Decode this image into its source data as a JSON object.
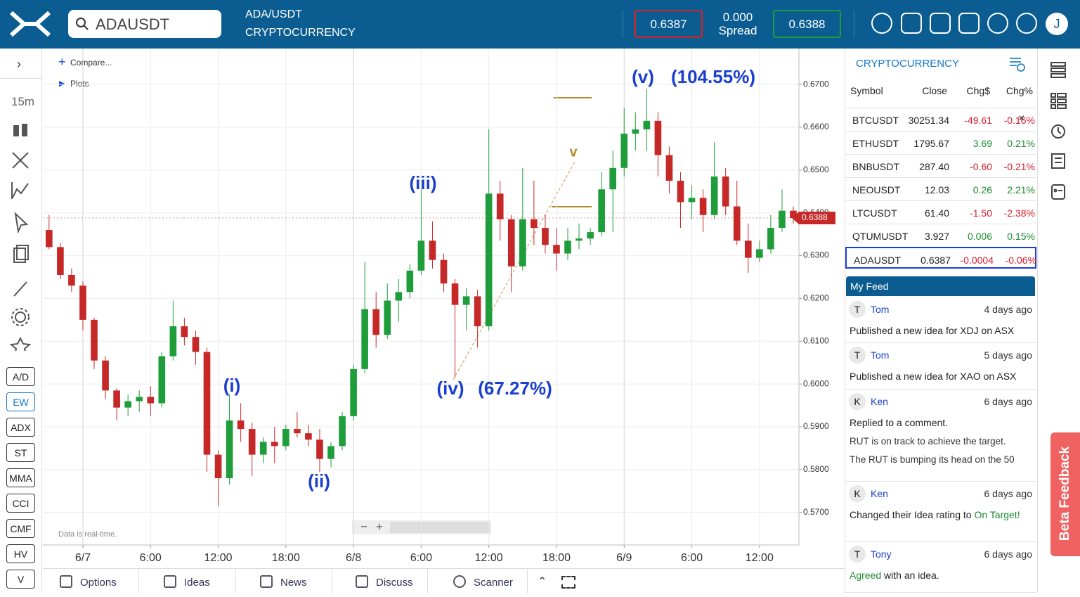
{
  "header": {
    "search": "ADAUSDT",
    "pair": "ADA/USDT",
    "market": "CRYPTOCURRENCY",
    "bid": "0.6387",
    "spread_value": "0.000",
    "spread_label": "Spread",
    "ask": "0.6388",
    "user_initial": "J"
  },
  "toolbar": {
    "interval": "15m",
    "compare": "Compare...",
    "plots": "Plots",
    "indicators": [
      "A/D",
      "EW",
      "ADX",
      "ST",
      "MMA",
      "CCI",
      "CMF",
      "HV",
      "V"
    ],
    "realtime_note": "Data is real-time."
  },
  "chart_data": {
    "type": "candlestick",
    "x": [
      -3,
      -2,
      -1,
      0,
      1,
      2,
      3,
      4,
      5,
      6,
      7,
      8,
      9,
      10,
      11,
      12,
      13,
      14,
      15,
      16,
      17,
      18,
      19,
      20,
      21,
      22,
      23,
      24,
      25,
      26,
      27,
      28,
      29,
      30,
      31,
      32,
      33,
      34,
      35,
      36,
      37,
      38,
      39,
      40,
      41,
      42,
      43,
      44,
      45,
      46,
      47,
      48,
      49,
      50,
      51,
      52,
      53,
      54,
      55,
      56,
      57,
      58,
      59,
      60,
      61,
      62,
      63
    ],
    "open": [
      0.636,
      0.632,
      0.6255,
      0.623,
      0.615,
      0.6055,
      0.5985,
      0.5945,
      0.596,
      0.597,
      0.5955,
      0.6065,
      0.6135,
      0.611,
      0.6075,
      0.5835,
      0.578,
      0.5915,
      0.5895,
      0.5835,
      0.5865,
      0.5855,
      0.5895,
      0.5885,
      0.587,
      0.5825,
      0.5855,
      0.5925,
      0.6035,
      0.6175,
      0.6115,
      0.6195,
      0.6215,
      0.6265,
      0.6335,
      0.629,
      0.6235,
      0.6185,
      0.6205,
      0.6135,
      0.6445,
      0.6385,
      0.6275,
      0.6385,
      0.6365,
      0.6325,
      0.6305,
      0.6335,
      0.634,
      0.6355,
      0.6455,
      0.6505,
      0.6585,
      0.6595,
      0.6615,
      0.6535,
      0.6475,
      0.6425,
      0.6435,
      0.6395,
      0.6485,
      0.6415,
      0.6335,
      0.6295,
      0.6315,
      0.6365,
      0.6405
    ],
    "high": [
      0.6395,
      0.633,
      0.627,
      0.624,
      0.6155,
      0.6065,
      0.599,
      0.5975,
      0.5985,
      0.5995,
      0.6075,
      0.6195,
      0.6155,
      0.6125,
      0.6085,
      0.5845,
      0.5975,
      0.5955,
      0.591,
      0.5875,
      0.59,
      0.5905,
      0.5935,
      0.5905,
      0.5895,
      0.5865,
      0.5935,
      0.6045,
      0.6285,
      0.6215,
      0.6235,
      0.6245,
      0.628,
      0.6455,
      0.638,
      0.6305,
      0.6245,
      0.6225,
      0.622,
      0.6595,
      0.6475,
      0.6395,
      0.6505,
      0.6475,
      0.6395,
      0.6365,
      0.6365,
      0.6375,
      0.6365,
      0.6495,
      0.6545,
      0.6645,
      0.6635,
      0.669,
      0.6635,
      0.6555,
      0.6495,
      0.6465,
      0.6455,
      0.6565,
      0.6505,
      0.6475,
      0.6375,
      0.6335,
      0.6395,
      0.6455,
      0.6415
    ],
    "low": [
      0.6315,
      0.6245,
      0.6215,
      0.6125,
      0.6035,
      0.5965,
      0.5915,
      0.5925,
      0.5935,
      0.5925,
      0.5945,
      0.6055,
      0.609,
      0.6045,
      0.5795,
      0.5715,
      0.5765,
      0.5865,
      0.5785,
      0.5815,
      0.5815,
      0.5845,
      0.5875,
      0.5855,
      0.5795,
      0.5805,
      0.5845,
      0.5915,
      0.6025,
      0.6085,
      0.6105,
      0.6145,
      0.62,
      0.6255,
      0.627,
      0.6215,
      0.6015,
      0.6125,
      0.6085,
      0.6125,
      0.6335,
      0.6215,
      0.6265,
      0.6325,
      0.6305,
      0.6265,
      0.629,
      0.6315,
      0.6325,
      0.6345,
      0.6355,
      0.6485,
      0.6545,
      0.6545,
      0.6485,
      0.6445,
      0.6365,
      0.6385,
      0.6355,
      0.6385,
      0.6395,
      0.6325,
      0.626,
      0.6285,
      0.6305,
      0.6355,
      0.6375
    ],
    "close": [
      0.632,
      0.6255,
      0.623,
      0.615,
      0.6055,
      0.5985,
      0.5945,
      0.596,
      0.597,
      0.5955,
      0.6065,
      0.6135,
      0.611,
      0.6075,
      0.5835,
      0.578,
      0.5915,
      0.5895,
      0.5835,
      0.5865,
      0.5855,
      0.5895,
      0.5885,
      0.587,
      0.5825,
      0.5855,
      0.5925,
      0.6035,
      0.6175,
      0.6115,
      0.6195,
      0.6215,
      0.6265,
      0.6335,
      0.629,
      0.6235,
      0.6185,
      0.6205,
      0.6135,
      0.6445,
      0.6385,
      0.6275,
      0.6385,
      0.6365,
      0.6325,
      0.6305,
      0.6335,
      0.634,
      0.6355,
      0.6455,
      0.6505,
      0.6585,
      0.6595,
      0.6615,
      0.6535,
      0.6475,
      0.6425,
      0.6435,
      0.6395,
      0.6485,
      0.6415,
      0.6335,
      0.6295,
      0.6315,
      0.6365,
      0.6405,
      0.6388
    ],
    "up_color": "#1f9d3a",
    "down_color": "#c62828",
    "xlim": [
      -3.55,
      63.5
    ],
    "xticks": [
      {
        "value": 0,
        "label": "6/7"
      },
      {
        "value": 6,
        "label": "6:00"
      },
      {
        "value": 12,
        "label": "12:00"
      },
      {
        "value": 18,
        "label": "18:00"
      },
      {
        "value": 24,
        "label": "6/8"
      },
      {
        "value": 30,
        "label": "6:00"
      },
      {
        "value": 36,
        "label": "12:00"
      },
      {
        "value": 42,
        "label": "18:00"
      },
      {
        "value": 48,
        "label": "6/9"
      },
      {
        "value": 54,
        "label": "6:00"
      },
      {
        "value": 60,
        "label": "12:00"
      }
    ],
    "ylim": [
      0.5624,
      0.6784
    ],
    "yticks": [
      {
        "value": 0.57,
        "label": "0.5700"
      },
      {
        "value": 0.58,
        "label": "0.5800"
      },
      {
        "value": 0.59,
        "label": "0.5900"
      },
      {
        "value": 0.6,
        "label": "0.6000"
      },
      {
        "value": 0.61,
        "label": "0.6100"
      },
      {
        "value": 0.62,
        "label": "0.6200"
      },
      {
        "value": 0.63,
        "label": "0.6300"
      },
      {
        "value": 0.64,
        "label": "0.6400"
      },
      {
        "value": 0.65,
        "label": "0.6500"
      },
      {
        "value": 0.66,
        "label": "0.6600"
      },
      {
        "value": 0.67,
        "label": "0.6700"
      }
    ],
    "last_price": 0.6388,
    "grid": true,
    "annotations": [
      "(i)",
      "(ii)",
      "(iii)",
      "(iv)",
      "(67.27%)",
      "(v)",
      "(104.55%)",
      "v"
    ]
  },
  "watchlist": {
    "title": "CRYPTOCURRENCY",
    "columns": [
      "Symbol",
      "Close",
      "Chg$",
      "Chg%"
    ],
    "rows": [
      [
        "BTCUSDT",
        "30251.34",
        "-49.61",
        "-0.16%"
      ],
      [
        "ETHUSDT",
        "1795.67",
        "3.69",
        "0.21%"
      ],
      [
        "BNBUSDT",
        "287.40",
        "-0.60",
        "-0.21%"
      ],
      [
        "NEOUSDT",
        "12.03",
        "0.26",
        "2.21%"
      ],
      [
        "LTCUSDT",
        "61.40",
        "-1.50",
        "-2.38%"
      ],
      [
        "QTUMUSDT",
        "3.927",
        "0.006",
        "0.15%"
      ],
      [
        "ADAUSDT",
        "0.6387",
        "-0.0004",
        "-0.06%"
      ]
    ]
  },
  "feed": {
    "title": "My Feed",
    "items": [
      {
        "initial": "T",
        "user": "Tom",
        "time": "4 days ago",
        "text": [
          "Published a new idea for XDJ on ASX"
        ]
      },
      {
        "initial": "T",
        "user": "Tom",
        "time": "5 days ago",
        "text": [
          "Published a new idea for XAO on ASX"
        ]
      },
      {
        "initial": "K",
        "user": "Ken",
        "time": "6 days ago",
        "text": [
          "Replied to a comment."
        ],
        "body": [
          "RUT is on track to achieve the target.",
          "The RUT is bumping its head on the 50"
        ]
      },
      {
        "initial": "K",
        "user": "Ken",
        "time": "6 days ago",
        "text": [
          "Changed their Idea rating to ",
          "On Target!"
        ]
      },
      {
        "initial": "T",
        "user": "Tony",
        "time": "6 days ago",
        "text": [
          "Agreed",
          " with an idea."
        ]
      }
    ]
  },
  "tabs": [
    "Options",
    "Ideas",
    "News",
    "Discuss",
    "Scanner"
  ],
  "beta": "Beta Feedback"
}
